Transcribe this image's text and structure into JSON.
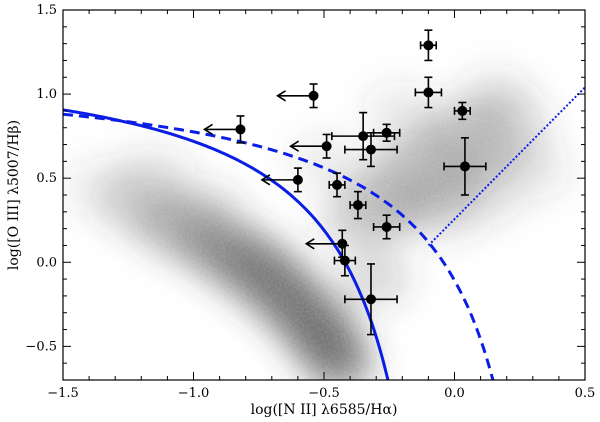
{
  "chart_data": {
    "type": "scatter",
    "xlabel": "log([N II] λ6585/Hα)",
    "ylabel": "log([O III] λ5007/Hβ)",
    "xlim": [
      -1.5,
      0.5
    ],
    "ylim": [
      -0.7,
      1.5
    ],
    "x_ticks": [
      -1.5,
      -1.0,
      -0.5,
      0.0,
      0.5
    ],
    "x_tick_labels": [
      "−1.5",
      "−1.0",
      "−0.5",
      "0.0",
      "0.5"
    ],
    "y_ticks": [
      -0.5,
      0.0,
      0.5,
      1.0,
      1.5
    ],
    "y_tick_labels": [
      "−0.5",
      "0.0",
      "0.5",
      "1.0",
      "1.5"
    ],
    "grid": false,
    "background": "grayscale 2D density of comparison galaxy sample",
    "lines": [
      {
        "style": "solid",
        "color": "#0a1ee6",
        "relation": "y = 0.61/(x - 0.05) + 1.3"
      },
      {
        "style": "dashed",
        "color": "#0a1ee6",
        "relation": "y = 0.61/(x - 0.47) + 1.19"
      },
      {
        "style": "dotted",
        "color": "#0a1ee6",
        "x_range": [
          -0.1,
          0.5
        ],
        "y_range": [
          0.1,
          1.04
        ]
      }
    ],
    "points": [
      {
        "x": -0.1,
        "y": 1.29,
        "xerr": 0.03,
        "yerr": 0.09,
        "upper_limit_x": false
      },
      {
        "x": -0.1,
        "y": 1.01,
        "xerr": 0.05,
        "yerr": 0.09,
        "upper_limit_x": false
      },
      {
        "x": 0.03,
        "y": 0.9,
        "xerr": 0.03,
        "yerr": 0.05,
        "upper_limit_x": false
      },
      {
        "x": -0.54,
        "y": 0.99,
        "xerr": 0.0,
        "yerr": 0.07,
        "upper_limit_x": true
      },
      {
        "x": -0.82,
        "y": 0.79,
        "xerr": 0.0,
        "yerr": 0.08,
        "upper_limit_x": true
      },
      {
        "x": -0.49,
        "y": 0.69,
        "xerr": 0.0,
        "yerr": 0.07,
        "upper_limit_x": true
      },
      {
        "x": -0.6,
        "y": 0.49,
        "xerr": 0.0,
        "yerr": 0.07,
        "upper_limit_x": true
      },
      {
        "x": -0.43,
        "y": 0.11,
        "xerr": 0.0,
        "yerr": 0.08,
        "upper_limit_x": true
      },
      {
        "x": -0.35,
        "y": 0.75,
        "xerr": 0.12,
        "yerr": 0.14,
        "upper_limit_x": false
      },
      {
        "x": -0.32,
        "y": 0.67,
        "xerr": 0.1,
        "yerr": 0.1,
        "upper_limit_x": false
      },
      {
        "x": -0.26,
        "y": 0.77,
        "xerr": 0.05,
        "yerr": 0.05,
        "upper_limit_x": false
      },
      {
        "x": 0.04,
        "y": 0.57,
        "xerr": 0.08,
        "yerr": 0.17,
        "upper_limit_x": false
      },
      {
        "x": -0.45,
        "y": 0.46,
        "xerr": 0.03,
        "yerr": 0.07,
        "upper_limit_x": false
      },
      {
        "x": -0.37,
        "y": 0.34,
        "xerr": 0.03,
        "yerr": 0.08,
        "upper_limit_x": false
      },
      {
        "x": -0.26,
        "y": 0.21,
        "xerr": 0.05,
        "yerr": 0.07,
        "upper_limit_x": false
      },
      {
        "x": -0.42,
        "y": 0.01,
        "xerr": 0.04,
        "yerr": 0.09,
        "upper_limit_x": false
      },
      {
        "x": -0.32,
        "y": -0.22,
        "xerr": 0.1,
        "yerr": 0.21,
        "upper_limit_x": false
      }
    ]
  }
}
